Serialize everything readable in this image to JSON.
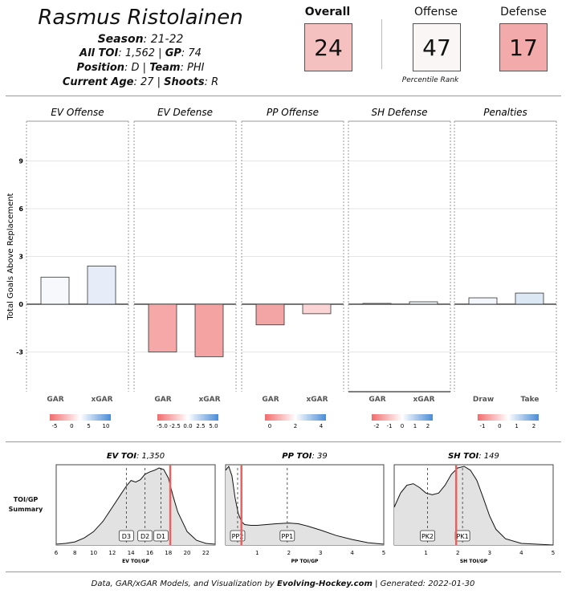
{
  "player": {
    "name": "Rasmus Ristolainen",
    "season_label": "Season",
    "season": "21-22",
    "toi_label": "All TOI",
    "toi": "1,562",
    "gp_label": "GP",
    "gp": "74",
    "position_label": "Position",
    "position": "D",
    "team_label": "Team",
    "team": "PHI",
    "age_label": "Current Age",
    "age": "27",
    "shoots_label": "Shoots",
    "shoots": "R"
  },
  "percentiles": {
    "caption": "Percentile Rank",
    "overall": {
      "label": "Overall",
      "value": "24",
      "color": "#f4c0c0"
    },
    "offense": {
      "label": "Offense",
      "value": "47",
      "color": "#fbf6f6"
    },
    "defense": {
      "label": "Defense",
      "value": "17",
      "color": "#f2aaaa"
    }
  },
  "chart_data": [
    {
      "type": "bar",
      "ylabel": "Total Goals Above Replacement",
      "ylim": [
        -5.5,
        11.5
      ],
      "yticks": [
        -3,
        0,
        3,
        6,
        9
      ],
      "grid": true,
      "panels": [
        {
          "title": "EV Offense",
          "categories": [
            "GAR",
            "xGAR"
          ],
          "values": [
            1.7,
            2.4
          ],
          "colors": [
            "#f6f8fb",
            "#e6edf8"
          ],
          "legend_ticks": [
            "-5",
            "0",
            "5",
            "10"
          ]
        },
        {
          "title": "EV Defense",
          "categories": [
            "GAR",
            "xGAR"
          ],
          "values": [
            -3.0,
            -3.3
          ],
          "colors": [
            "#f6a8a8",
            "#f4a2a2"
          ],
          "legend_ticks": [
            "-5.0",
            "-2.5",
            "0.0",
            "2.5",
            "5.0"
          ]
        },
        {
          "title": "PP Offense",
          "categories": [
            "GAR",
            "xGAR"
          ],
          "values": [
            -1.3,
            -0.6
          ],
          "colors": [
            "#f3a4a4",
            "#fbd5d5"
          ],
          "legend_ticks": [
            "0",
            "2",
            "4"
          ]
        },
        {
          "title": "SH Defense",
          "categories": [
            "GAR",
            "xGAR"
          ],
          "values": [
            0.05,
            0.15
          ],
          "colors": [
            "#f7f7f7",
            "#f4f6f9"
          ],
          "legend_ticks": [
            "-2",
            "-1",
            "0",
            "1",
            "2"
          ]
        },
        {
          "title": "Penalties",
          "categories": [
            "Draw",
            "Take"
          ],
          "values": [
            0.4,
            0.7
          ],
          "colors": [
            "#f3f6fb",
            "#dde8f5"
          ],
          "legend_ticks": [
            "-1",
            "0",
            "1",
            "2"
          ]
        }
      ]
    },
    {
      "type": "area",
      "title_label": "EV TOI",
      "title_value": "1,350",
      "xlabel": "EV TOI/GP",
      "xlim": [
        6,
        23
      ],
      "xticks": [
        6,
        8,
        10,
        12,
        14,
        16,
        18,
        20,
        22
      ],
      "player_value": 18.2,
      "markers": [
        {
          "label": "D3",
          "x": 13.5
        },
        {
          "label": "D2",
          "x": 15.5
        },
        {
          "label": "D1",
          "x": 17.2
        }
      ],
      "density_x": [
        6,
        7,
        8,
        9,
        10,
        11,
        12,
        13,
        13.5,
        14,
        14.5,
        15,
        15.5,
        16,
        16.5,
        17,
        17.5,
        18,
        18.5,
        19,
        20,
        21,
        22,
        23
      ],
      "density_y": [
        0.01,
        0.02,
        0.04,
        0.09,
        0.17,
        0.3,
        0.48,
        0.66,
        0.75,
        0.82,
        0.8,
        0.83,
        0.9,
        0.93,
        0.95,
        0.98,
        0.96,
        0.85,
        0.62,
        0.42,
        0.17,
        0.06,
        0.02,
        0.01
      ]
    },
    {
      "type": "area",
      "title_label": "PP TOI",
      "title_value": "39",
      "xlabel": "PP TOI/GP",
      "xlim": [
        0,
        5
      ],
      "xticks": [
        1,
        2,
        3,
        4,
        5
      ],
      "player_value": 0.5,
      "markers": [
        {
          "label": "PP2",
          "x": 0.38
        },
        {
          "label": "PP1",
          "x": 1.95
        }
      ],
      "density_x": [
        0,
        0.1,
        0.2,
        0.3,
        0.4,
        0.5,
        0.6,
        0.8,
        1.0,
        1.3,
        1.6,
        2.0,
        2.3,
        2.6,
        3.0,
        3.5,
        4.0,
        4.5,
        5.0
      ],
      "density_y": [
        0.95,
        1.0,
        0.88,
        0.6,
        0.4,
        0.3,
        0.26,
        0.25,
        0.25,
        0.26,
        0.27,
        0.28,
        0.27,
        0.24,
        0.19,
        0.12,
        0.07,
        0.03,
        0.01
      ]
    },
    {
      "type": "area",
      "title_label": "SH TOI",
      "title_value": "149",
      "xlabel": "SH TOI/GP",
      "xlim": [
        0,
        5
      ],
      "xticks": [
        1,
        2,
        3,
        4,
        5
      ],
      "player_value": 1.95,
      "markers": [
        {
          "label": "PK2",
          "x": 1.05
        },
        {
          "label": "PK1",
          "x": 2.15
        }
      ],
      "density_x": [
        0,
        0.2,
        0.4,
        0.6,
        0.8,
        1.0,
        1.2,
        1.4,
        1.6,
        1.8,
        2.0,
        2.2,
        2.4,
        2.6,
        2.8,
        3.0,
        3.2,
        3.5,
        4.0,
        4.5,
        5.0
      ],
      "density_y": [
        0.48,
        0.66,
        0.76,
        0.78,
        0.73,
        0.66,
        0.64,
        0.66,
        0.76,
        0.9,
        0.98,
        1.0,
        0.95,
        0.82,
        0.6,
        0.37,
        0.2,
        0.08,
        0.02,
        0.01,
        0.0
      ]
    }
  ],
  "summary_label": "TOI/GP\nSummary",
  "footer": {
    "prefix": "Data, GAR/xGAR Models, and Visualization by ",
    "brand": "Evolving-Hockey.com",
    "suffix": " | Generated: 2022-01-30"
  }
}
